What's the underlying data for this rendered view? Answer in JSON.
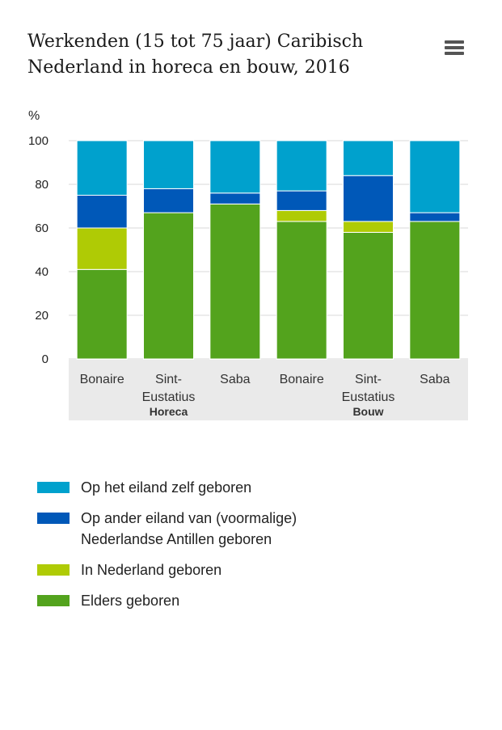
{
  "title": "Werkenden (15 tot 75 jaar) Caribisch Nederland in horeca en bouw, 2016",
  "menu_icon": "hamburger-menu-icon",
  "chart_data": {
    "type": "bar",
    "stacked": true,
    "ylabel": "%",
    "ylim": [
      0,
      100
    ],
    "yticks": [
      0,
      20,
      40,
      60,
      80,
      100
    ],
    "grid": true,
    "categories": [
      "Bonaire",
      "Sint-Eustatius",
      "Saba",
      "Bonaire",
      "Sint-Eustatius",
      "Saba"
    ],
    "category_lines": [
      [
        "Bonaire"
      ],
      [
        "Sint-",
        "Eustatius"
      ],
      [
        "Saba"
      ],
      [
        "Bonaire"
      ],
      [
        "Sint-",
        "Eustatius"
      ],
      [
        "Saba"
      ]
    ],
    "groups": [
      {
        "label": "Horeca",
        "categories": [
          0,
          1,
          2
        ]
      },
      {
        "label": "Bouw",
        "categories": [
          3,
          4,
          5
        ]
      }
    ],
    "series": [
      {
        "name": "Elders geboren",
        "color": "#53a31d",
        "values": [
          41,
          67,
          71,
          63,
          58,
          63
        ]
      },
      {
        "name": "In Nederland geboren",
        "color": "#afcb05",
        "values": [
          19,
          0,
          0,
          5,
          5,
          0
        ]
      },
      {
        "name": "Op ander eiland van (voormalige) Nederlandse Antillen geboren",
        "color": "#0058b8",
        "values": [
          15,
          11,
          5,
          9,
          21,
          4
        ]
      },
      {
        "name": "Op het eiland zelf geboren",
        "color": "#00a1cd",
        "values": [
          25,
          22,
          24,
          23,
          16,
          33
        ]
      }
    ],
    "legend_position": "bottom"
  },
  "legend": [
    {
      "label": "Op het eiland zelf geboren",
      "color": "#00a1cd",
      "series": 3
    },
    {
      "label": "Op ander eiland van (voormalige) Nederlandse Antillen geboren",
      "color": "#0058b8",
      "series": 2
    },
    {
      "label": "In Nederland geboren",
      "color": "#afcb05",
      "series": 1
    },
    {
      "label": "Elders geboren",
      "color": "#53a31d",
      "series": 0
    }
  ]
}
